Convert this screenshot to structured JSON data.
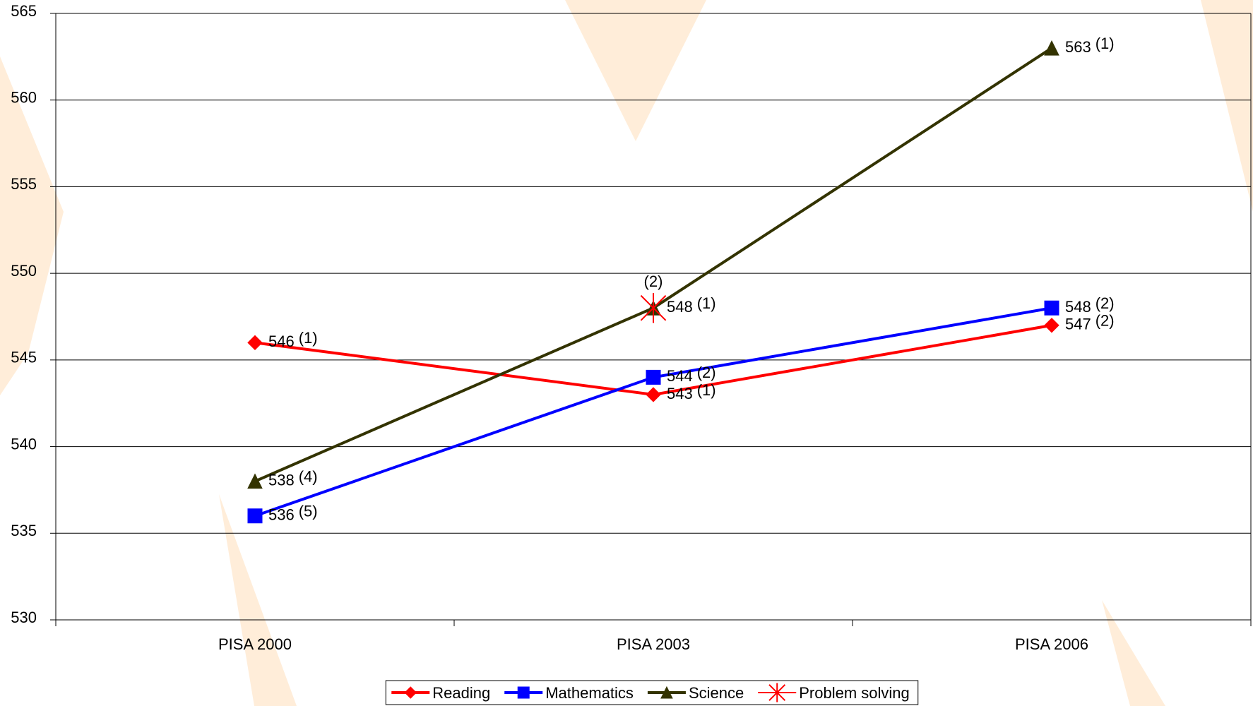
{
  "chart_data": {
    "type": "line",
    "categories": [
      "PISA 2000",
      "PISA 2003",
      "PISA 2006"
    ],
    "series": [
      {
        "name": "Reading",
        "color": "#ff0000",
        "marker": "diamond",
        "values": [
          546,
          543,
          547
        ],
        "ranks": [
          "(1)",
          "(1)",
          "(2)"
        ]
      },
      {
        "name": "Mathematics",
        "color": "#0000ff",
        "marker": "square",
        "values": [
          536,
          544,
          548
        ],
        "ranks": [
          "(5)",
          "(2)",
          "(2)"
        ]
      },
      {
        "name": "Science",
        "color": "#333300",
        "marker": "triangle",
        "values": [
          538,
          548,
          563
        ],
        "ranks": [
          "(4)",
          "(1)",
          "(1)"
        ]
      },
      {
        "name": "Problem solving",
        "color": "#ff0000",
        "marker": "star",
        "values": [
          null,
          548,
          null
        ],
        "ranks": [
          null,
          "(2)",
          null
        ]
      }
    ],
    "ylim": [
      530,
      565
    ],
    "yticks": [
      530,
      535,
      540,
      545,
      550,
      555,
      560,
      565
    ],
    "grid": true,
    "legend": "bottom"
  }
}
